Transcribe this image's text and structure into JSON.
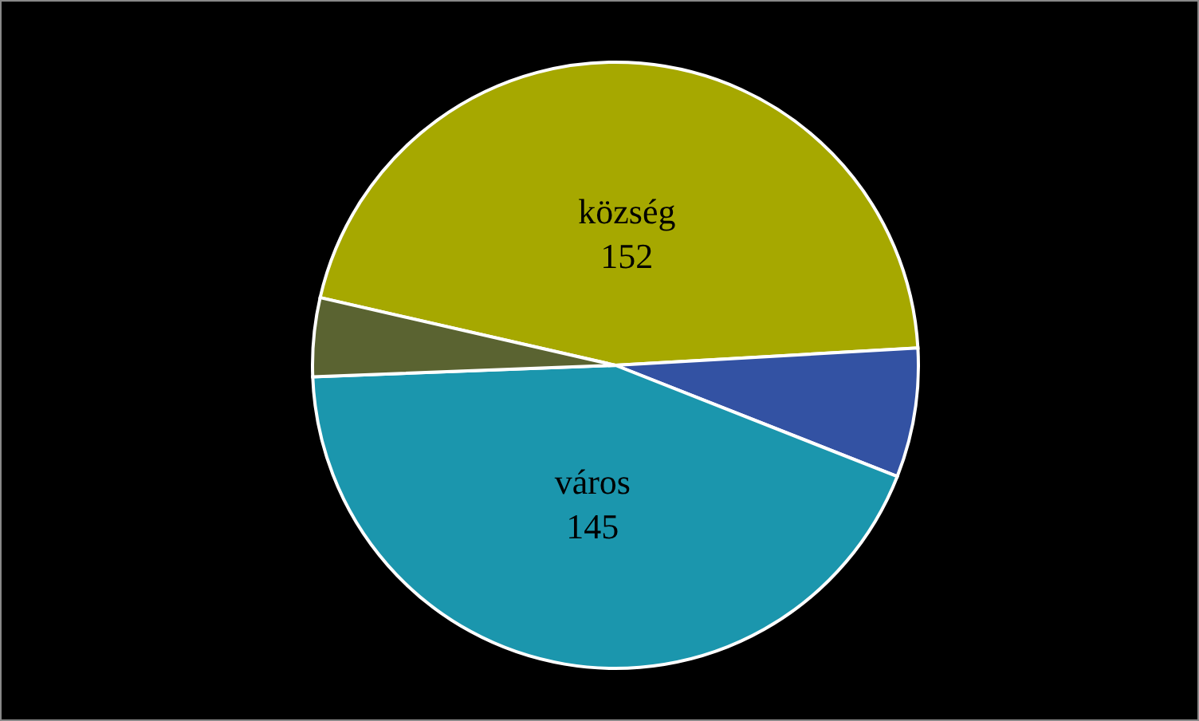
{
  "chart_data": {
    "type": "pie",
    "categories": [
      "község",
      null,
      "város",
      null
    ],
    "values": [
      152,
      23,
      145,
      14
    ],
    "colors": [
      "#a6a800",
      "#3352a3",
      "#1b96ad",
      "#5a6331"
    ],
    "value_labels": [
      "152",
      null,
      "145",
      null
    ]
  }
}
